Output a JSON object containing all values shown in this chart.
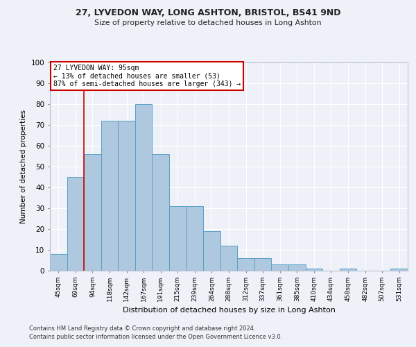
{
  "title1": "27, LYVEDON WAY, LONG ASHTON, BRISTOL, BS41 9ND",
  "title2": "Size of property relative to detached houses in Long Ashton",
  "xlabel": "Distribution of detached houses by size in Long Ashton",
  "ylabel": "Number of detached properties",
  "footnote1": "Contains HM Land Registry data © Crown copyright and database right 2024.",
  "footnote2": "Contains public sector information licensed under the Open Government Licence v3.0.",
  "categories": [
    "45sqm",
    "69sqm",
    "94sqm",
    "118sqm",
    "142sqm",
    "167sqm",
    "191sqm",
    "215sqm",
    "239sqm",
    "264sqm",
    "288sqm",
    "312sqm",
    "337sqm",
    "361sqm",
    "385sqm",
    "410sqm",
    "434sqm",
    "458sqm",
    "482sqm",
    "507sqm",
    "531sqm"
  ],
  "values": [
    8,
    45,
    56,
    72,
    72,
    80,
    56,
    31,
    31,
    19,
    12,
    6,
    6,
    3,
    3,
    1,
    0,
    1,
    0,
    0,
    1
  ],
  "bar_color": "#aec8e0",
  "bar_edge_color": "#5a9fc5",
  "subject_label": "27 LYVEDON WAY: 95sqm",
  "annotation_line1": "← 13% of detached houses are smaller (53)",
  "annotation_line2": "87% of semi-detached houses are larger (343) →",
  "annotation_box_color": "#cc0000",
  "vline_color": "#cc0000",
  "background_color": "#eef2f8",
  "ylim": [
    0,
    100
  ],
  "yticks": [
    0,
    10,
    20,
    30,
    40,
    50,
    60,
    70,
    80,
    90,
    100
  ]
}
